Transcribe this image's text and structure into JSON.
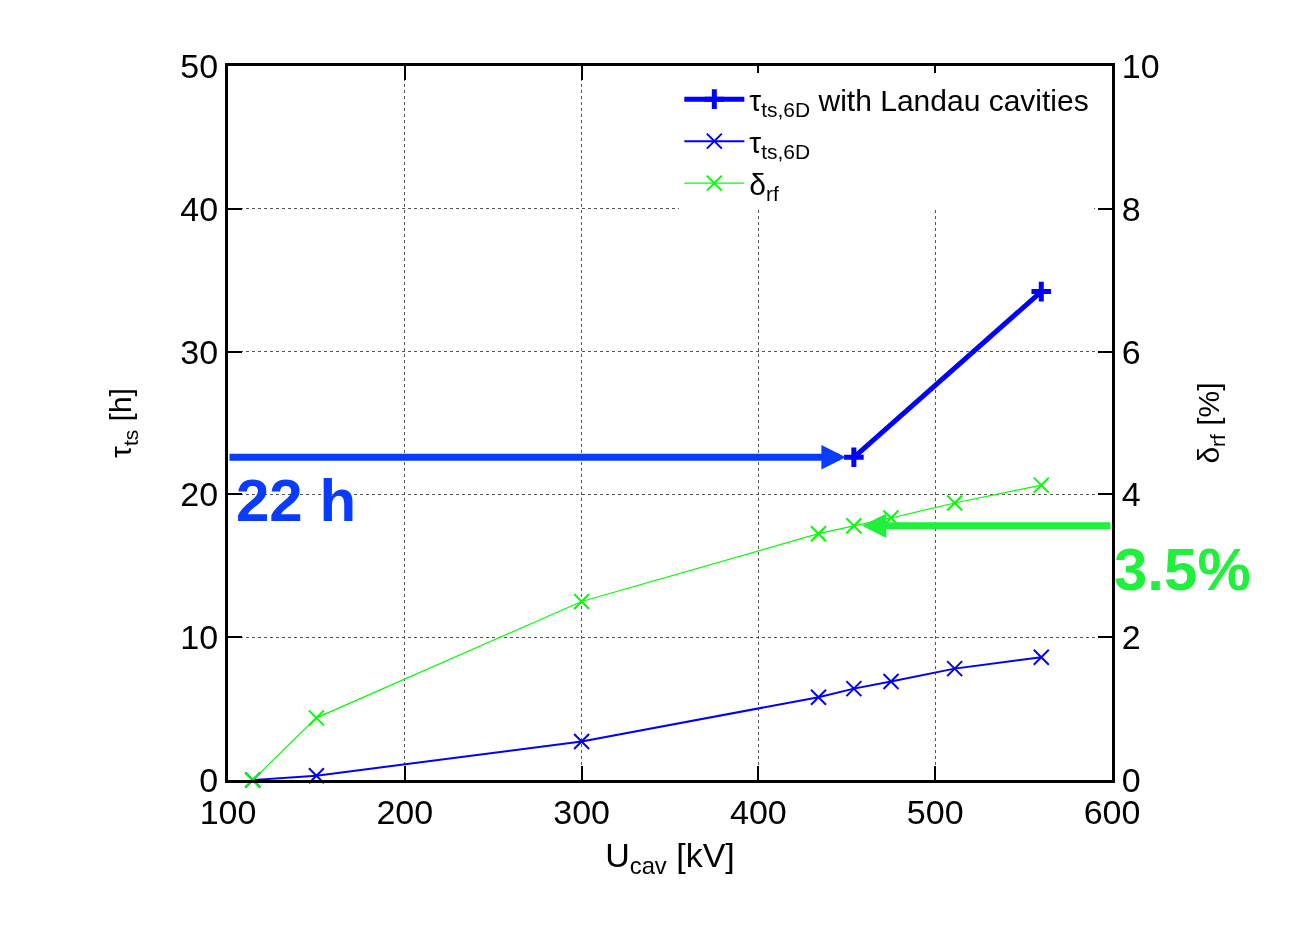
{
  "chart_data": {
    "type": "line",
    "xlabel": "U$_{cav}$ [kV]",
    "ylabel": "τ$_{ts}$ [h]",
    "y2label": "δ$_{rf}$ [%]",
    "xlim": [
      100,
      600
    ],
    "xticks": [
      100,
      200,
      300,
      400,
      500,
      600
    ],
    "ylim": [
      0,
      50
    ],
    "yticks": [
      0,
      10,
      20,
      30,
      40,
      50
    ],
    "y2lim": [
      0,
      10
    ],
    "y2ticks": [
      0,
      2,
      4,
      6,
      8,
      10
    ],
    "grid": true,
    "legend": "top right",
    "series": [
      {
        "name": "τ$_{ts,6D}$ with Landau cavities",
        "color": "#0000ff",
        "marker": "cross",
        "x": [
          454,
          560
        ],
        "values": [
          22.6,
          34.2
        ]
      },
      {
        "name": "τ$_{ts,6D}$",
        "color": "#0000ff",
        "marker": "x",
        "x": [
          114,
          150,
          300,
          434,
          454,
          475,
          511,
          560
        ],
        "values": [
          0,
          0.3,
          2.7,
          5.8,
          6.4,
          6.9,
          7.8,
          8.6
        ]
      },
      {
        "name": "δ$_{rf}$",
        "color": "#00ff00",
        "marker": "x",
        "axis": "y2",
        "x": [
          114,
          150,
          300,
          434,
          454,
          475,
          511,
          560
        ],
        "values": [
          0,
          0.87,
          2.5,
          3.45,
          3.56,
          3.67,
          3.88,
          4.13
        ]
      }
    ],
    "annotations": [
      {
        "text": "22 h",
        "x": 454,
        "y": 22.6
      },
      {
        "text": "3.5%",
        "x": 454,
        "y": 17.8
      }
    ]
  }
}
